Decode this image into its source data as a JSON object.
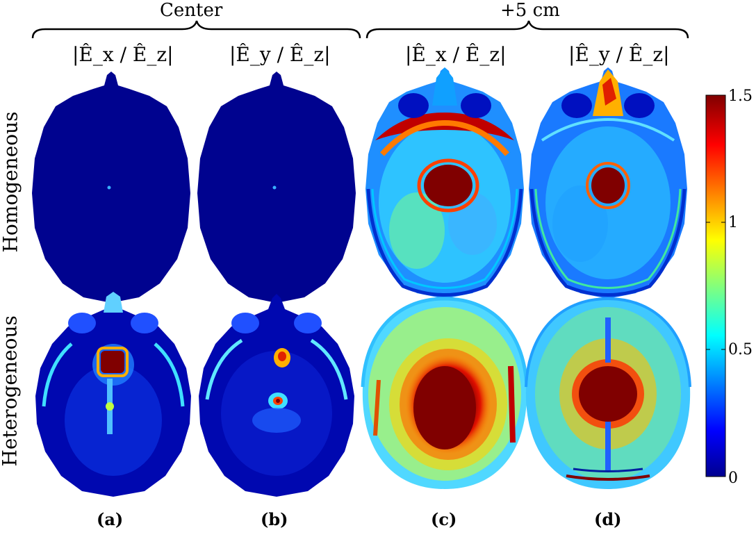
{
  "groups": {
    "center": "Center",
    "offset": "+5 cm"
  },
  "columns": {
    "c1": "|Ê_x / Ê_z|",
    "c2": "|Ê_y / Ê_z|",
    "c3": "|Ê_x / Ê_z|",
    "c4": "|Ê_y / Ê_z|"
  },
  "rows": {
    "top": "Homogeneous",
    "bottom": "Heterogeneous"
  },
  "panels": {
    "a": "(a)",
    "b": "(b)",
    "c": "(c)",
    "d": "(d)"
  },
  "colorbar": {
    "min": 0,
    "max": 1.5,
    "ticks": [
      "1.5",
      "1",
      "0.5",
      "0"
    ],
    "colormap": "jet"
  }
}
